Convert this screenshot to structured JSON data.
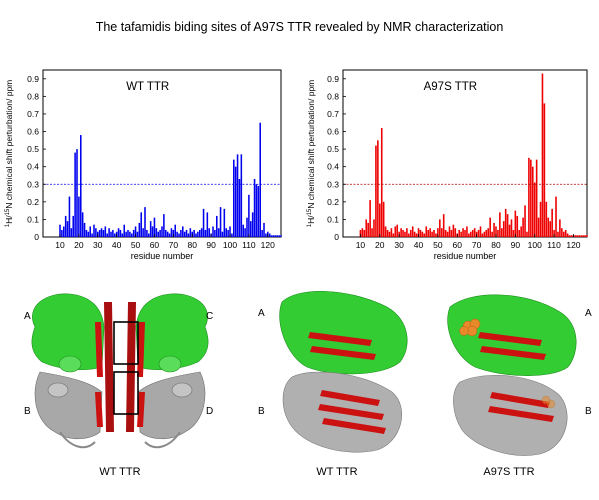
{
  "figure": {
    "title": "The tafamidis biding sites of A97S TTR revealed by NMR characterization"
  },
  "chart_data": [
    {
      "type": "bar",
      "title": "WT TTR",
      "xlabel": "residue number",
      "ylabel": "1H/15N chemical shift perturbation/ ppm",
      "ylabel_parts": {
        "sup1": "1",
        "a": "H/",
        "sup2": "15",
        "b": "N chemical shift perturbation/ ppm"
      },
      "color": "#0000ee",
      "threshold": 0.3,
      "threshold_color": "#0000ee",
      "xlim": [
        1,
        127
      ],
      "ylim": [
        0,
        0.95
      ],
      "xticks": [
        10,
        20,
        30,
        40,
        50,
        60,
        70,
        80,
        90,
        100,
        110,
        120
      ],
      "yticks": [
        0.1,
        0.2,
        0.3,
        0.4,
        0.5,
        0.6,
        0.7,
        0.8,
        0.9
      ],
      "ytick_labels": [
        "0.1",
        "0.2",
        "0.3",
        "0.4",
        "0.5",
        "0.6",
        "0.7",
        "0.8",
        "0.9"
      ],
      "tick_zero_label": "0",
      "x": [
        10,
        11,
        12,
        13,
        14,
        15,
        16,
        17,
        18,
        19,
        20,
        21,
        22,
        23,
        24,
        25,
        26,
        27,
        28,
        29,
        30,
        31,
        32,
        33,
        34,
        35,
        36,
        37,
        38,
        39,
        40,
        41,
        42,
        43,
        44,
        45,
        46,
        47,
        48,
        49,
        50,
        51,
        52,
        53,
        54,
        55,
        56,
        57,
        58,
        59,
        60,
        61,
        62,
        63,
        64,
        65,
        66,
        67,
        68,
        69,
        70,
        71,
        72,
        73,
        74,
        75,
        76,
        77,
        78,
        79,
        80,
        81,
        82,
        83,
        84,
        85,
        86,
        87,
        88,
        89,
        90,
        91,
        92,
        93,
        94,
        95,
        96,
        97,
        98,
        99,
        100,
        101,
        102,
        103,
        104,
        105,
        106,
        107,
        108,
        109,
        110,
        111,
        112,
        113,
        114,
        115,
        116,
        117,
        118,
        119,
        120,
        121,
        122,
        123,
        124,
        125,
        126,
        127
      ],
      "values": [
        0.07,
        0.04,
        0.06,
        0.12,
        0.09,
        0.23,
        0.05,
        0.12,
        0.48,
        0.5,
        0.23,
        0.58,
        0.14,
        0.08,
        0.04,
        0.03,
        0.06,
        0.02,
        0.07,
        0.05,
        0.03,
        0.04,
        0.05,
        0.04,
        0.06,
        0.02,
        0.05,
        0.03,
        0.04,
        0.02,
        0.03,
        0.05,
        0.04,
        0.02,
        0.07,
        0.03,
        0.04,
        0.03,
        0.02,
        0.04,
        0.06,
        0.03,
        0.08,
        0.14,
        0.05,
        0.17,
        0.04,
        0.02,
        0.09,
        0.06,
        0.11,
        0.05,
        0.03,
        0.04,
        0.06,
        0.13,
        0.04,
        0.03,
        0.02,
        0.05,
        0.04,
        0.07,
        0.03,
        0.02,
        0.04,
        0.06,
        0.03,
        0.04,
        0.02,
        0.05,
        0.03,
        0.04,
        0.02,
        0.03,
        0.04,
        0.05,
        0.16,
        0.04,
        0.14,
        0.05,
        0.02,
        0.06,
        0.04,
        0.12,
        0.05,
        0.17,
        0.03,
        0.16,
        0.05,
        0.04,
        0.06,
        0.02,
        0.44,
        0.4,
        0.47,
        0.33,
        0.47,
        0.07,
        0.05,
        0.11,
        0.24,
        0.09,
        0.14,
        0.33,
        0.3,
        0.29,
        0.65,
        0.04,
        0.08,
        0.02,
        0.03,
        0.02,
        0.01,
        0.01,
        0.01,
        0.01,
        0.01,
        0.01
      ]
    },
    {
      "type": "bar",
      "title": "A97S TTR",
      "xlabel": "residue number",
      "ylabel": "1H/15N chemical shift perturbation/ ppm",
      "ylabel_parts": {
        "sup1": "1",
        "a": "H/",
        "sup2": "15",
        "b": "N chemical shift perturbation/ ppm"
      },
      "color": "#ee0000",
      "threshold": 0.3,
      "threshold_color": "#b00000",
      "xlim": [
        1,
        127
      ],
      "ylim": [
        0,
        0.95
      ],
      "xticks": [
        10,
        20,
        30,
        40,
        50,
        60,
        70,
        80,
        90,
        100,
        110,
        120
      ],
      "yticks": [
        0.1,
        0.2,
        0.3,
        0.4,
        0.5,
        0.6,
        0.7,
        0.8,
        0.9
      ],
      "ytick_labels": [
        "0.1",
        "0.2",
        "0.3",
        "0.4",
        "0.5",
        "0.6",
        "0.7",
        "0.8",
        "0.9"
      ],
      "tick_zero_label": "0",
      "x": [
        10,
        11,
        12,
        13,
        14,
        15,
        16,
        17,
        18,
        19,
        20,
        21,
        22,
        23,
        24,
        25,
        26,
        27,
        28,
        29,
        30,
        31,
        32,
        33,
        34,
        35,
        36,
        37,
        38,
        39,
        40,
        41,
        42,
        43,
        44,
        45,
        46,
        47,
        48,
        49,
        50,
        51,
        52,
        53,
        54,
        55,
        56,
        57,
        58,
        59,
        60,
        61,
        62,
        63,
        64,
        65,
        66,
        67,
        68,
        69,
        70,
        71,
        72,
        73,
        74,
        75,
        76,
        77,
        78,
        79,
        80,
        81,
        82,
        83,
        84,
        85,
        86,
        87,
        88,
        89,
        90,
        91,
        92,
        93,
        94,
        95,
        96,
        97,
        98,
        99,
        100,
        101,
        102,
        103,
        104,
        105,
        106,
        107,
        108,
        109,
        110,
        111,
        112,
        113,
        114,
        115,
        116,
        117,
        118,
        119,
        120,
        121,
        122,
        123,
        124,
        125,
        126,
        127
      ],
      "values": [
        0.04,
        0.05,
        0.04,
        0.1,
        0.08,
        0.21,
        0.05,
        0.1,
        0.52,
        0.55,
        0.19,
        0.62,
        0.2,
        0.06,
        0.04,
        0.03,
        0.05,
        0.02,
        0.06,
        0.07,
        0.03,
        0.05,
        0.04,
        0.03,
        0.05,
        0.02,
        0.04,
        0.06,
        0.03,
        0.02,
        0.05,
        0.04,
        0.03,
        0.02,
        0.06,
        0.04,
        0.05,
        0.03,
        0.04,
        0.02,
        0.05,
        0.1,
        0.05,
        0.13,
        0.04,
        0.03,
        0.06,
        0.04,
        0.07,
        0.05,
        0.02,
        0.04,
        0.03,
        0.05,
        0.04,
        0.06,
        0.02,
        0.03,
        0.04,
        0.05,
        0.03,
        0.04,
        0.06,
        0.02,
        0.03,
        0.04,
        0.05,
        0.11,
        0.03,
        0.08,
        0.06,
        0.04,
        0.14,
        0.05,
        0.09,
        0.16,
        0.13,
        0.07,
        0.1,
        0.04,
        0.15,
        0.12,
        0.04,
        0.06,
        0.11,
        0.18,
        0.03,
        0.45,
        0.44,
        0.4,
        0.31,
        0.44,
        0.11,
        0.2,
        0.93,
        0.76,
        0.2,
        0.11,
        0.09,
        0.16,
        0.04,
        0.23,
        0.03,
        0.1,
        0.05,
        0.03,
        0.04,
        0.02,
        0.01,
        0.01,
        0.01,
        0.01,
        0.01,
        0.01,
        0.01,
        0.01,
        0.01,
        0.01
      ]
    }
  ],
  "structures": {
    "panel1": {
      "caption": "WT TTR",
      "labels": {
        "a": "A",
        "b": "B",
        "c": "C",
        "d": "D"
      }
    },
    "panel2": {
      "caption": "WT TTR",
      "labels": {
        "a": "A",
        "b": "B"
      }
    },
    "panel3": {
      "caption": "A97S TTR",
      "labels": {
        "a": "A",
        "b": "B"
      }
    },
    "colors": {
      "green": "#33cc33",
      "red": "#cc1111",
      "darkred": "#8b0000",
      "gray": "#a8a8a8",
      "orange": "#e88a2a"
    }
  }
}
